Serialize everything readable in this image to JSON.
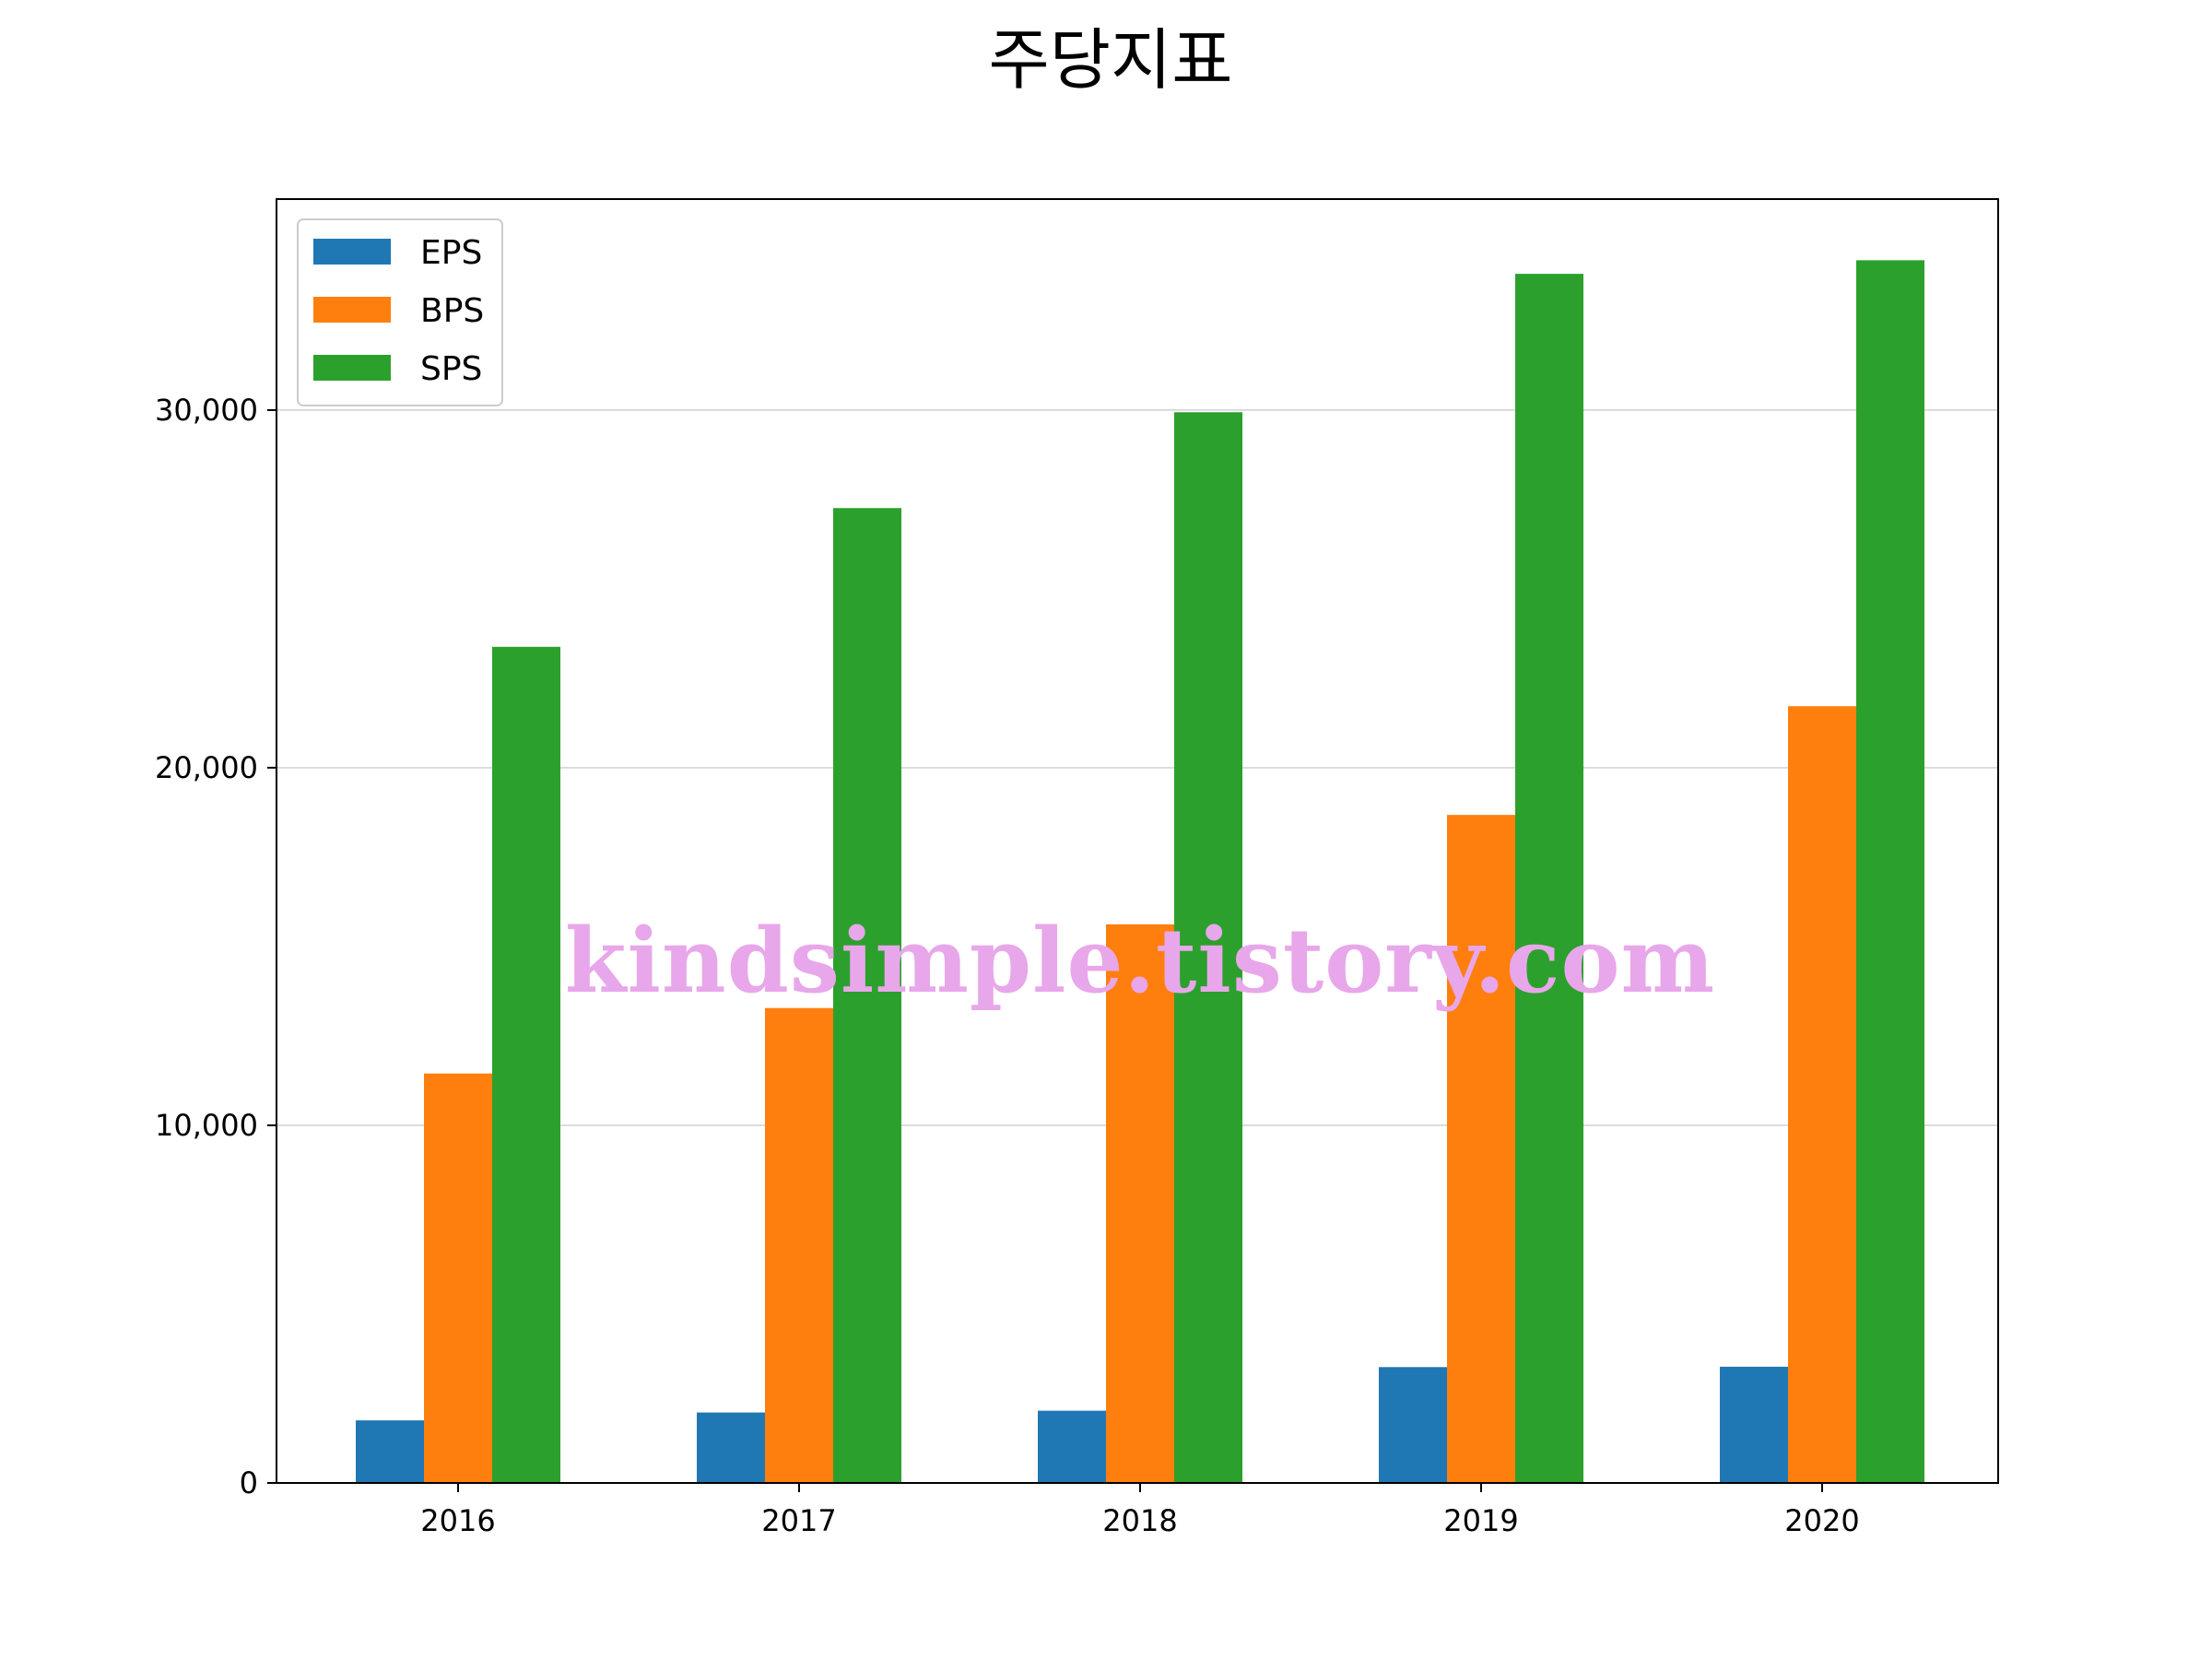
{
  "chart_data": {
    "type": "bar",
    "title": "주당지표",
    "xlabel": "",
    "ylabel": "",
    "categories": [
      "2016",
      "2017",
      "2018",
      "2019",
      "2020"
    ],
    "series": [
      {
        "name": "EPS",
        "color": "#1f77b4",
        "values": [
          1750,
          1970,
          2020,
          3240,
          3250
        ]
      },
      {
        "name": "BPS",
        "color": "#ff7f0e",
        "values": [
          11450,
          13280,
          15620,
          18680,
          21720
        ]
      },
      {
        "name": "SPS",
        "color": "#2ca02c",
        "values": [
          23380,
          27260,
          29940,
          33810,
          34190
        ]
      }
    ],
    "ylim": [
      0,
      35900
    ],
    "yticks": [
      0,
      10000,
      20000,
      30000
    ],
    "ytick_labels": [
      "0",
      "10,000",
      "20,000",
      "30,000"
    ],
    "grid": "horizontal",
    "legend_position": "top-left"
  },
  "watermark": {
    "text": "kindsimple.tistory.com",
    "color": "#e8a7ea"
  }
}
